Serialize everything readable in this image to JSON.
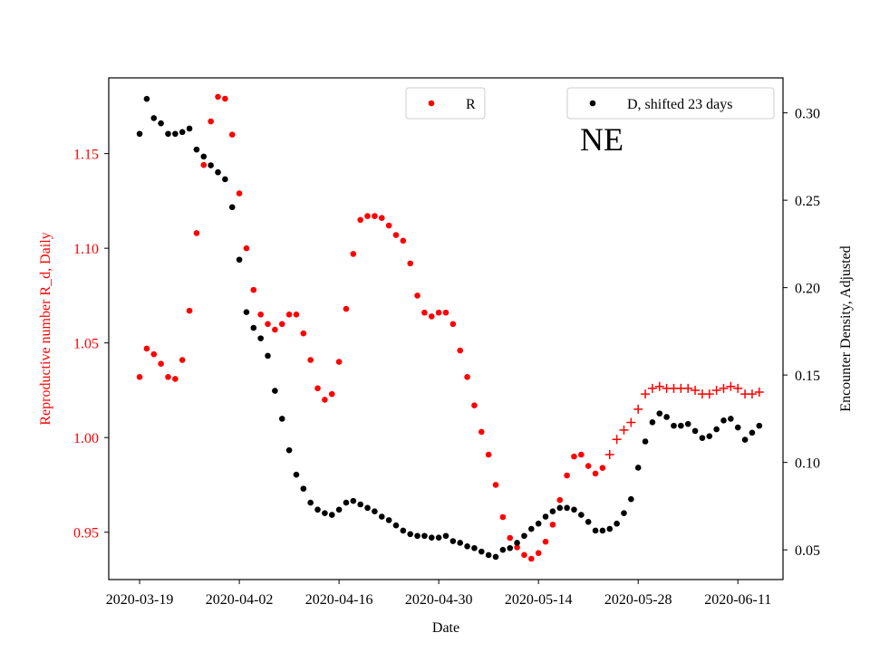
{
  "chart_data": {
    "type": "scatter",
    "region_label": "NE",
    "xlabel": "Date",
    "ylabel_left": "Reproductive number R_d, Daily",
    "ylabel_right": "Encounter Density, Adjusted",
    "x_ticks": [
      "2020-03-19",
      "2020-04-02",
      "2020-04-16",
      "2020-04-30",
      "2020-05-14",
      "2020-05-28",
      "2020-06-11"
    ],
    "y_left_ticks": [
      "0.95",
      "1.00",
      "1.05",
      "1.10",
      "1.15"
    ],
    "y_right_ticks": [
      "0.05",
      "0.10",
      "0.15",
      "0.20",
      "0.25",
      "0.30"
    ],
    "xlim": [
      "2020-03-14T16:00",
      "2020-06-17T08:00"
    ],
    "ylim_left": [
      0.925,
      1.19
    ],
    "ylim_right": [
      0.033,
      0.32
    ],
    "colors": {
      "left_axis": "#ff0000",
      "R": "#ff0000",
      "D": "#000000"
    },
    "legend": [
      {
        "label": "R",
        "position": "top-center",
        "marker": "dot",
        "color": "#ff0000"
      },
      {
        "label": "D, shifted 23 days",
        "position": "top-right",
        "marker": "dot",
        "color": "#000000"
      }
    ],
    "series": [
      {
        "name": "R",
        "axis": "left",
        "marker": "dot",
        "color": "#ff0000",
        "x": [
          "2020-03-19",
          "2020-03-20",
          "2020-03-21",
          "2020-03-22",
          "2020-03-23",
          "2020-03-24",
          "2020-03-25",
          "2020-03-26",
          "2020-03-27",
          "2020-03-28",
          "2020-03-29",
          "2020-03-30",
          "2020-03-31",
          "2020-04-01",
          "2020-04-02",
          "2020-04-03",
          "2020-04-04",
          "2020-04-05",
          "2020-04-06",
          "2020-04-07",
          "2020-04-08",
          "2020-04-09",
          "2020-04-10",
          "2020-04-11",
          "2020-04-12",
          "2020-04-13",
          "2020-04-14",
          "2020-04-15",
          "2020-04-16",
          "2020-04-17",
          "2020-04-18",
          "2020-04-19",
          "2020-04-20",
          "2020-04-21",
          "2020-04-22",
          "2020-04-23",
          "2020-04-24",
          "2020-04-25",
          "2020-04-26",
          "2020-04-27",
          "2020-04-28",
          "2020-04-29",
          "2020-04-30",
          "2020-05-01",
          "2020-05-02",
          "2020-05-03",
          "2020-05-04",
          "2020-05-05",
          "2020-05-06",
          "2020-05-07",
          "2020-05-08",
          "2020-05-09",
          "2020-05-10",
          "2020-05-11",
          "2020-05-12",
          "2020-05-13",
          "2020-05-14",
          "2020-05-15",
          "2020-05-16",
          "2020-05-17",
          "2020-05-18",
          "2020-05-19",
          "2020-05-20",
          "2020-05-21",
          "2020-05-22",
          "2020-05-23"
        ],
        "y": [
          1.032,
          1.047,
          1.044,
          1.039,
          1.032,
          1.031,
          1.041,
          1.067,
          1.108,
          1.144,
          1.167,
          1.18,
          1.179,
          1.16,
          1.129,
          1.1,
          1.078,
          1.065,
          1.06,
          1.057,
          1.06,
          1.065,
          1.065,
          1.055,
          1.041,
          1.026,
          1.02,
          1.023,
          1.04,
          1.068,
          1.097,
          1.115,
          1.117,
          1.117,
          1.116,
          1.112,
          1.107,
          1.104,
          1.092,
          1.075,
          1.066,
          1.064,
          1.066,
          1.066,
          1.06,
          1.046,
          1.032,
          1.017,
          1.003,
          0.991,
          0.975,
          0.958,
          0.947,
          0.942,
          0.938,
          0.936,
          0.939,
          0.945,
          0.954,
          0.967,
          0.98,
          0.99,
          0.991,
          0.985,
          0.981,
          0.984
        ]
      },
      {
        "name": "R",
        "axis": "left",
        "marker": "plus",
        "color": "#ff0000",
        "x": [
          "2020-05-24",
          "2020-05-25",
          "2020-05-26",
          "2020-05-27",
          "2020-05-28",
          "2020-05-29",
          "2020-05-30",
          "2020-05-31",
          "2020-06-01",
          "2020-06-02",
          "2020-06-03",
          "2020-06-04",
          "2020-06-05",
          "2020-06-06",
          "2020-06-07",
          "2020-06-08",
          "2020-06-09",
          "2020-06-10",
          "2020-06-11",
          "2020-06-12",
          "2020-06-13",
          "2020-06-14"
        ],
        "y": [
          0.991,
          0.999,
          1.004,
          1.008,
          1.015,
          1.023,
          1.026,
          1.027,
          1.026,
          1.026,
          1.026,
          1.026,
          1.025,
          1.023,
          1.023,
          1.025,
          1.026,
          1.027,
          1.026,
          1.023,
          1.023,
          1.024
        ]
      },
      {
        "name": "D, shifted 23 days",
        "axis": "right",
        "marker": "dot",
        "color": "#000000",
        "x": [
          "2020-03-19",
          "2020-03-20",
          "2020-03-21",
          "2020-03-22",
          "2020-03-23",
          "2020-03-24",
          "2020-03-25",
          "2020-03-26",
          "2020-03-27",
          "2020-03-28",
          "2020-03-29",
          "2020-03-30",
          "2020-03-31",
          "2020-04-01",
          "2020-04-02",
          "2020-04-03",
          "2020-04-04",
          "2020-04-05",
          "2020-04-06",
          "2020-04-07",
          "2020-04-08",
          "2020-04-09",
          "2020-04-10",
          "2020-04-11",
          "2020-04-12",
          "2020-04-13",
          "2020-04-14",
          "2020-04-15",
          "2020-04-16",
          "2020-04-17",
          "2020-04-18",
          "2020-04-19",
          "2020-04-20",
          "2020-04-21",
          "2020-04-22",
          "2020-04-23",
          "2020-04-24",
          "2020-04-25",
          "2020-04-26",
          "2020-04-27",
          "2020-04-28",
          "2020-04-29",
          "2020-04-30",
          "2020-05-01",
          "2020-05-02",
          "2020-05-03",
          "2020-05-04",
          "2020-05-05",
          "2020-05-06",
          "2020-05-07",
          "2020-05-08",
          "2020-05-09",
          "2020-05-10",
          "2020-05-11",
          "2020-05-12",
          "2020-05-13",
          "2020-05-14",
          "2020-05-15",
          "2020-05-16",
          "2020-05-17",
          "2020-05-18",
          "2020-05-19",
          "2020-05-20",
          "2020-05-21",
          "2020-05-22",
          "2020-05-23",
          "2020-05-24",
          "2020-05-25",
          "2020-05-26",
          "2020-05-27",
          "2020-05-28",
          "2020-05-29",
          "2020-05-30",
          "2020-05-31",
          "2020-06-01",
          "2020-06-02",
          "2020-06-03",
          "2020-06-04",
          "2020-06-05",
          "2020-06-06",
          "2020-06-07",
          "2020-06-08",
          "2020-06-09",
          "2020-06-10",
          "2020-06-11",
          "2020-06-12",
          "2020-06-13",
          "2020-06-14"
        ],
        "y": [
          0.288,
          0.308,
          0.297,
          0.294,
          0.288,
          0.288,
          0.289,
          0.291,
          0.279,
          0.275,
          0.27,
          0.266,
          0.262,
          0.246,
          0.216,
          0.186,
          0.177,
          0.171,
          0.161,
          0.141,
          0.125,
          0.107,
          0.093,
          0.085,
          0.077,
          0.073,
          0.071,
          0.07,
          0.073,
          0.077,
          0.078,
          0.076,
          0.074,
          0.072,
          0.069,
          0.067,
          0.064,
          0.061,
          0.059,
          0.058,
          0.058,
          0.057,
          0.057,
          0.058,
          0.055,
          0.054,
          0.052,
          0.051,
          0.049,
          0.047,
          0.046,
          0.05,
          0.051,
          0.054,
          0.058,
          0.062,
          0.065,
          0.069,
          0.072,
          0.074,
          0.074,
          0.073,
          0.07,
          0.066,
          0.061,
          0.061,
          0.062,
          0.065,
          0.071,
          0.079,
          0.097,
          0.112,
          0.123,
          0.128,
          0.126,
          0.121,
          0.121,
          0.122,
          0.118,
          0.114,
          0.115,
          0.119,
          0.124,
          0.125,
          0.12,
          0.113,
          0.117,
          0.121
        ]
      }
    ]
  }
}
